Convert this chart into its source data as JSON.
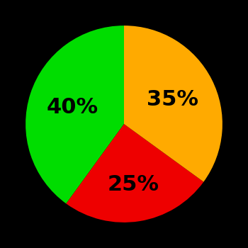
{
  "slices": [
    40,
    35,
    25
  ],
  "colors": [
    "#00dd00",
    "#ffaa00",
    "#ee0000"
  ],
  "labels": [
    "40%",
    "35%",
    "25%"
  ],
  "startangle": 90,
  "background_color": "#000000",
  "label_fontsize": 22,
  "label_fontweight": "bold",
  "label_radii": [
    0.55,
    0.62,
    0.55
  ]
}
